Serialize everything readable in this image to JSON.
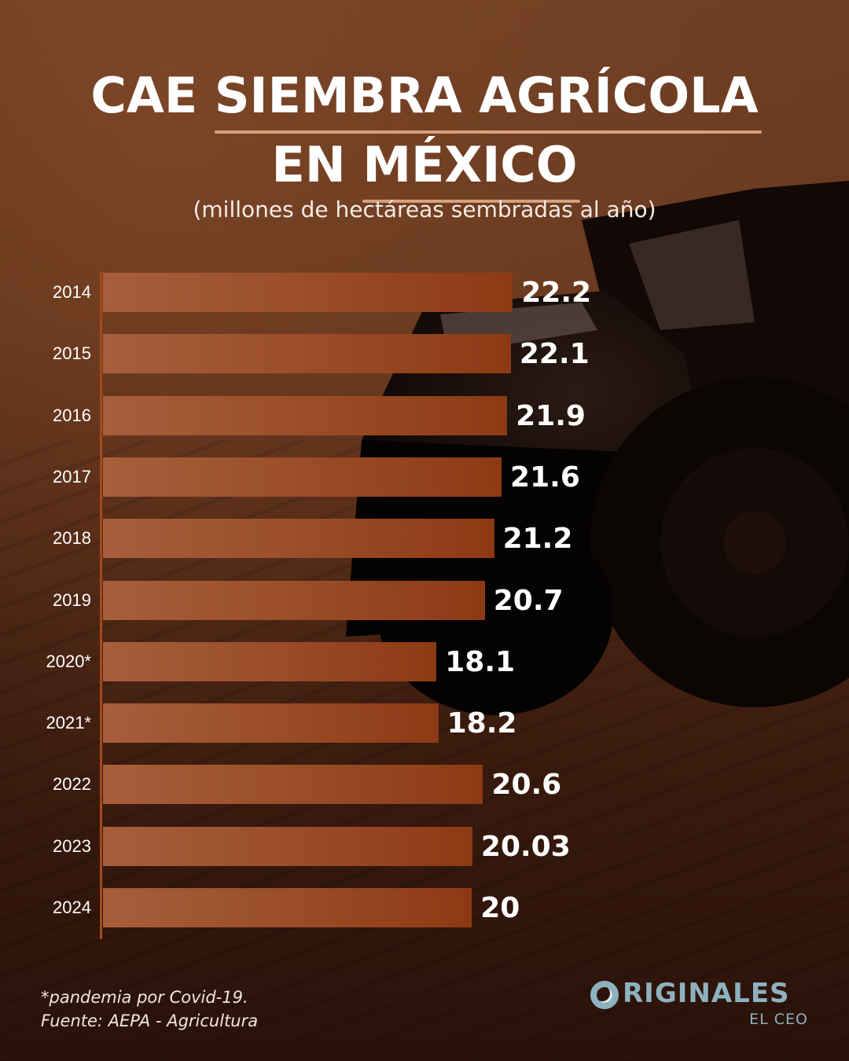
{
  "title": {
    "line1_prefix": "CAE ",
    "line1_underlined": "SIEMBRA AGRÍCOLA",
    "line2_prefix": "EN ",
    "line2_underlined": "MÉXICO"
  },
  "subtitle": "(millones de hectáreas sembradas al año)",
  "footnote": "*pandemia por Covid-19.",
  "source": "Fuente: AEPA - Agricultura",
  "logo": {
    "word": "RIGINALES",
    "sub": "EL CEO",
    "icon": "ring-o-icon"
  },
  "colors": {
    "bar_start": "#a85e3b",
    "bar_end": "#8d3a14",
    "underline": "#d7a07d",
    "logo": "#8db2bf",
    "axis": "#a4491d"
  },
  "chart_data": {
    "type": "bar",
    "orientation": "horizontal",
    "title": "CAE SIEMBRA AGRÍCOLA EN MÉXICO",
    "subtitle": "(millones de hectáreas sembradas al año)",
    "xlabel": "",
    "ylabel": "",
    "grid": false,
    "legend": null,
    "categories": [
      "2014",
      "2015",
      "2016",
      "2017",
      "2018",
      "2019",
      "2020*",
      "2021*",
      "2022",
      "2023",
      "2024"
    ],
    "values": [
      22.2,
      22.1,
      21.9,
      21.6,
      21.2,
      20.7,
      18.1,
      18.2,
      20.6,
      20.03,
      20
    ],
    "labels": [
      "22.2",
      "22.1",
      "21.9",
      "21.6",
      "21.2",
      "20.7",
      "18.1",
      "18.2",
      "20.6",
      "20.03",
      "20"
    ],
    "annotations": [
      "*pandemia por Covid-19.",
      "Fuente: AEPA - Agricultura"
    ]
  }
}
